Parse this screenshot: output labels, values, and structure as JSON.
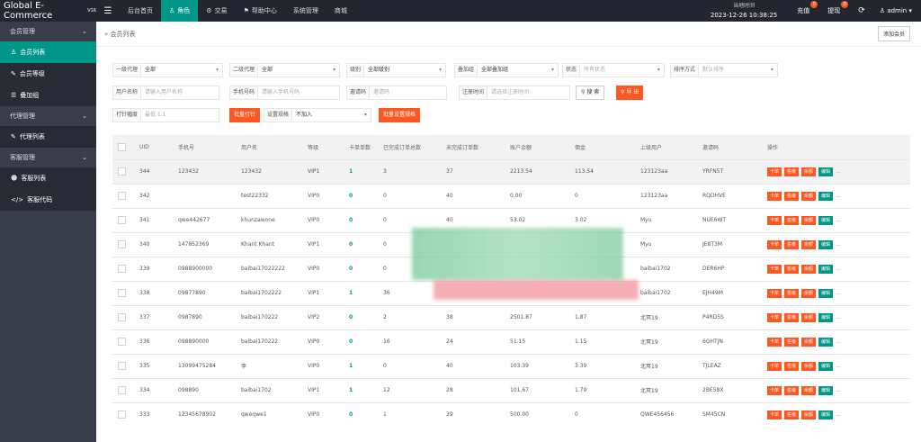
{
  "app": {
    "title": "Global E-Commerce",
    "version": "V16"
  },
  "topnav": [
    {
      "icon": "",
      "label": "后台首页"
    },
    {
      "icon": "♙",
      "label": "角色"
    },
    {
      "icon": "⚙",
      "label": "交易"
    },
    {
      "icon": "⚑",
      "label": "帮助中心"
    },
    {
      "icon": "",
      "label": "系统管理"
    },
    {
      "icon": "",
      "label": "商城"
    }
  ],
  "time": {
    "label": "当地时间",
    "value": "2023-12-26 10:38:25"
  },
  "recharge": {
    "label": "充值",
    "badge": "0"
  },
  "withdraw": {
    "label": "提现",
    "badge": "0"
  },
  "user": {
    "label": "admin"
  },
  "sidebar": [
    {
      "type": "group",
      "label": "会员管理"
    },
    {
      "type": "item",
      "icon": "♙",
      "label": "会员列表",
      "active": true
    },
    {
      "type": "item",
      "icon": "✎",
      "label": "会员等级"
    },
    {
      "type": "item",
      "icon": "☰",
      "label": "叠加组"
    },
    {
      "type": "group",
      "label": "代理管理"
    },
    {
      "type": "item",
      "icon": "✎",
      "label": "代理列表"
    },
    {
      "type": "group",
      "label": "客服管理"
    },
    {
      "type": "item",
      "icon": "☻",
      "label": "客服列表"
    },
    {
      "type": "item",
      "icon": "</>",
      "label": "客服代码"
    }
  ],
  "breadcrumb": "会员列表",
  "add_member": "添加会员",
  "filters": {
    "agent1": {
      "label": "一级代理",
      "value": "全部"
    },
    "agent2": {
      "label": "二级代理",
      "value": "全部"
    },
    "level": {
      "label": "级别",
      "value": "全部级别"
    },
    "stack": {
      "label": "叠加组",
      "value": "全部叠加组"
    },
    "status": {
      "label": "状态",
      "placeholder": "所有状态"
    },
    "sort": {
      "label": "排序方式",
      "placeholder": "默认排序"
    },
    "username": {
      "label": "用户名称",
      "placeholder": "请输入用户名称"
    },
    "phone": {
      "label": "手机号码",
      "placeholder": "请输入手机号码"
    },
    "invite": {
      "label": "邀请码",
      "placeholder": "邀请码"
    },
    "regtime": {
      "label": "注册时间",
      "placeholder": "请选择注册时间"
    },
    "search_btn": "搜 索",
    "export_btn": "导 出",
    "hit": {
      "label": "打针幅度",
      "placeholder": "最低 1.1"
    },
    "batch_hit": "批量打针",
    "rule": {
      "label": "设置规格",
      "value": "不加入"
    },
    "batch_rule": "批量设置规格"
  },
  "table": {
    "headers": [
      "UID",
      "手机号",
      "用户名",
      "等级",
      "卡单单数",
      "已完成订单总数",
      "未完成订单数",
      "账户余额",
      "佣金",
      "上级用户",
      "邀请码",
      "操作"
    ],
    "actions": [
      "卡单",
      "信级",
      "余额",
      "编辑",
      "..."
    ],
    "rows": [
      [
        "344",
        "123432",
        "123432",
        "VIP1",
        "1",
        "3",
        "37",
        "2213.54",
        "113.54",
        "123123aa",
        "YRFN5T"
      ],
      [
        "342",
        "",
        "test22332",
        "VIP0",
        "0",
        "0",
        "40",
        "0.00",
        "0",
        "123123aa",
        "RQDHVE"
      ],
      [
        "341",
        "qwe442677",
        "khunzawone",
        "VIP0",
        "0",
        "0",
        "40",
        "53.02",
        "3.02",
        "Myu",
        "NUE6WT"
      ],
      [
        "340",
        "147852369",
        "Khant Khant",
        "VIP1",
        "0",
        "0",
        "",
        "",
        "",
        "Myu",
        "JE8T3M"
      ],
      [
        "339",
        "0988900000",
        "baibai17022222",
        "VIP0",
        "0",
        "0",
        "",
        "",
        "",
        "baibai1702",
        "DER6HP"
      ],
      [
        "338",
        "09877890",
        "baibai1702222",
        "VIP1",
        "1",
        "36",
        "",
        "",
        "",
        "baibai1702",
        "EJH49M"
      ],
      [
        "337",
        "0987890",
        "baibai170222",
        "VIP2",
        "0",
        "2",
        "38",
        "2501.87",
        "1.87",
        "北冥19",
        "P4RD5S"
      ],
      [
        "336",
        "098890000",
        "baibai170222",
        "VIP0",
        "0",
        "16",
        "24",
        "51.15",
        "1.15",
        "北冥19",
        "6GHTJN"
      ],
      [
        "335",
        "13099475284",
        "李",
        "VIP0",
        "1",
        "0",
        "40",
        "103.39",
        "3.39",
        "北冥19",
        "TJLEAZ"
      ],
      [
        "334",
        "098890",
        "baibai1702",
        "VIP1",
        "1",
        "12",
        "28",
        "101.67",
        "1.79",
        "北冥19",
        "2BE58X"
      ],
      [
        "333",
        "12345678902",
        "qweqwe1",
        "VIP0",
        "0",
        "1",
        "39",
        "500.00",
        "0",
        "QWE456456",
        "SM45CN"
      ]
    ]
  }
}
